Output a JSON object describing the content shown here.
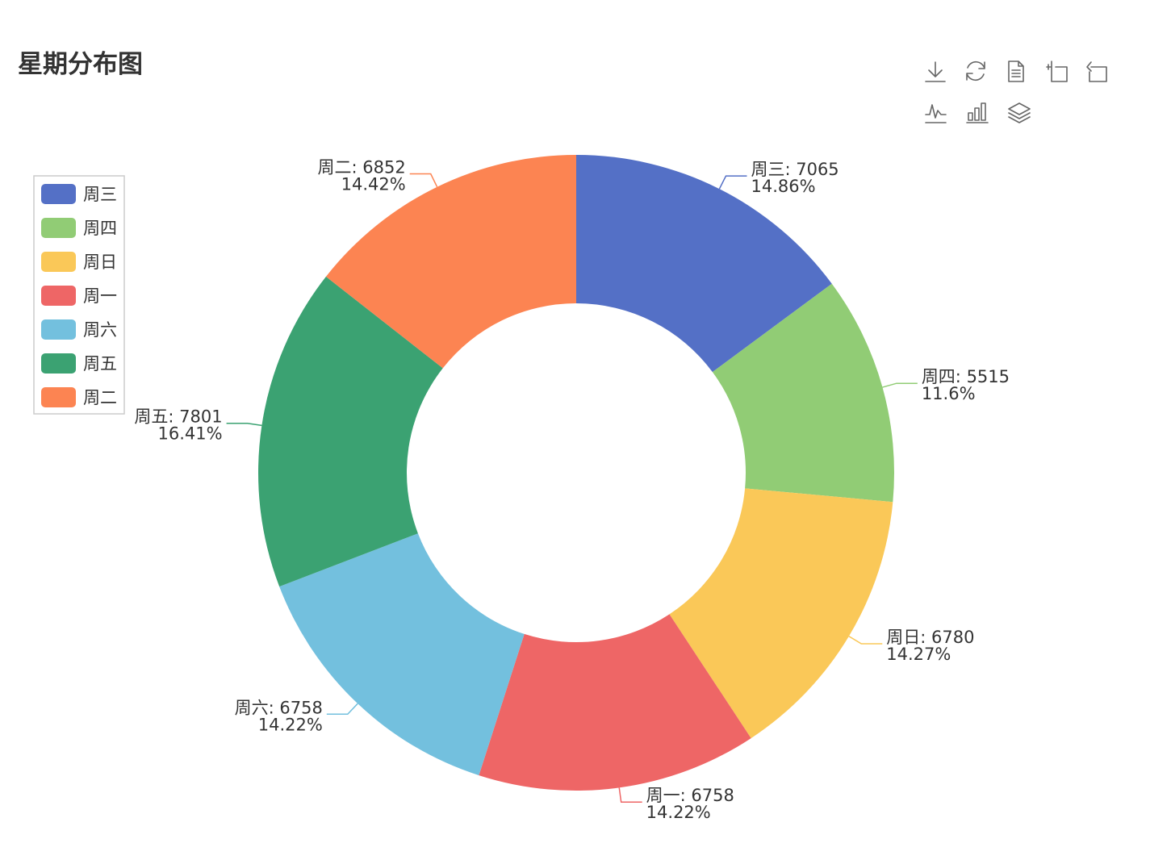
{
  "title": "星期分布图",
  "toolbox": {
    "icons": [
      {
        "name": "download-icon"
      },
      {
        "name": "refresh-icon"
      },
      {
        "name": "data-view-icon"
      },
      {
        "name": "zoom-icon"
      },
      {
        "name": "zoom-reset-icon"
      },
      {
        "name": "line-chart-icon"
      },
      {
        "name": "bar-chart-icon"
      },
      {
        "name": "stack-icon"
      }
    ]
  },
  "chart_data": {
    "type": "pie",
    "variant": "donut",
    "title": "星期分布图",
    "legend_position": "left",
    "legend": [
      "周三",
      "周四",
      "周日",
      "周一",
      "周六",
      "周五",
      "周二"
    ],
    "slices": [
      {
        "name": "周三",
        "value": 7065,
        "percent": "14.86%",
        "color": "#5470c6"
      },
      {
        "name": "周四",
        "value": 5515,
        "percent": "11.6%",
        "color": "#91cc75"
      },
      {
        "name": "周日",
        "value": 6780,
        "percent": "14.27%",
        "color": "#fac858"
      },
      {
        "name": "周一",
        "value": 6758,
        "percent": "14.22%",
        "color": "#ee6666"
      },
      {
        "name": "周六",
        "value": 6758,
        "percent": "14.22%",
        "color": "#73c0de"
      },
      {
        "name": "周五",
        "value": 7801,
        "percent": "16.41%",
        "color": "#3ba272"
      },
      {
        "name": "周二",
        "value": 6852,
        "percent": "14.42%",
        "color": "#fc8452"
      }
    ]
  }
}
